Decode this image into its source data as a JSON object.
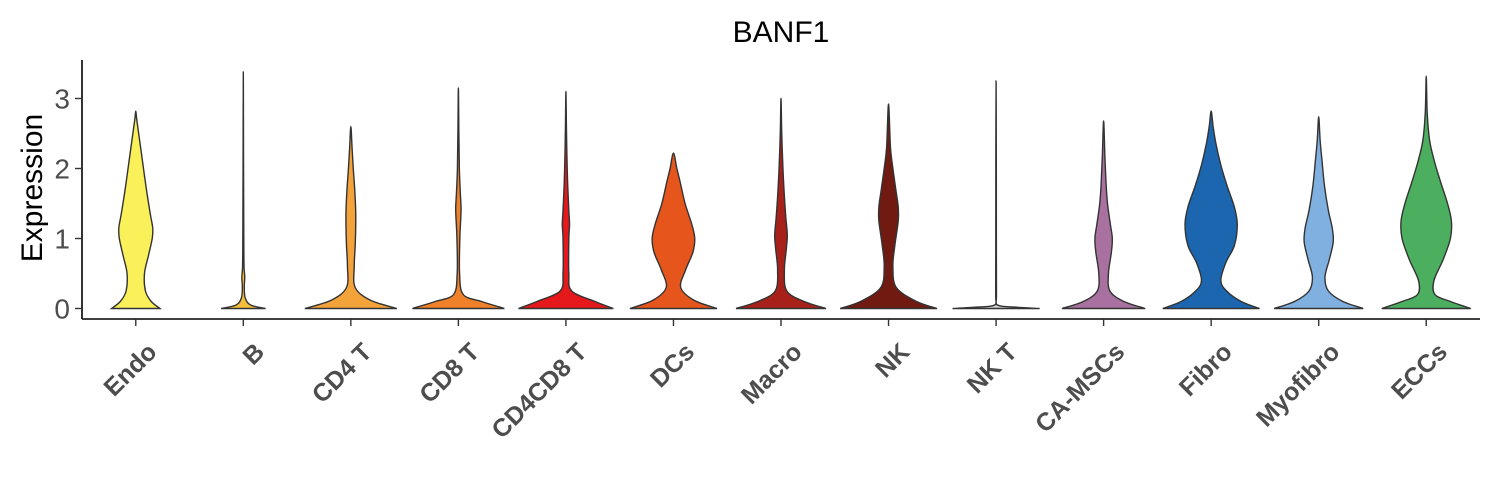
{
  "chart_data": {
    "type": "violin",
    "title": "BANF1",
    "ylabel": "Expression",
    "xlabel": "",
    "ylim": [
      -0.15,
      3.55
    ],
    "yticks": [
      0,
      1,
      2,
      3
    ],
    "categories": [
      "Endo",
      "B",
      "CD4 T",
      "CD8 T",
      "CD4CD8 T",
      "DCs",
      "Macro",
      "NK",
      "NK T",
      "CA-MSCs",
      "Fibro",
      "Myofibro",
      "ECCs"
    ],
    "colors": [
      "#F9F05A",
      "#F6BE3A",
      "#F4A23A",
      "#F0812B",
      "#E5191C",
      "#E6561C",
      "#A8201A",
      "#701A12",
      "#D5D5D5",
      "#A8719F",
      "#1C66B0",
      "#7FB0E0",
      "#4CAF60"
    ],
    "max_values": [
      2.82,
      3.38,
      2.6,
      3.15,
      3.1,
      2.22,
      3.0,
      2.92,
      3.25,
      2.68,
      2.82,
      2.74,
      3.32
    ],
    "shapes": [
      [
        [
          0,
          0.5
        ],
        [
          0.1,
          0.32
        ],
        [
          0.25,
          0.2
        ],
        [
          0.5,
          0.18
        ],
        [
          0.75,
          0.26
        ],
        [
          1.0,
          0.34
        ],
        [
          1.15,
          0.35
        ],
        [
          1.35,
          0.3
        ],
        [
          1.7,
          0.22
        ],
        [
          2.1,
          0.14
        ],
        [
          2.4,
          0.08
        ],
        [
          2.7,
          0.02
        ]
      ],
      [
        [
          0,
          0.46
        ],
        [
          0.05,
          0.15
        ],
        [
          0.15,
          0.04
        ],
        [
          0.3,
          0.02
        ],
        [
          0.45,
          0.03
        ],
        [
          0.6,
          0.015
        ],
        [
          1.0,
          0.01
        ],
        [
          2.0,
          0.005
        ]
      ],
      [
        [
          0,
          0.95
        ],
        [
          0.12,
          0.4
        ],
        [
          0.3,
          0.09
        ],
        [
          0.6,
          0.07
        ],
        [
          0.9,
          0.09
        ],
        [
          1.15,
          0.1
        ],
        [
          1.4,
          0.1
        ],
        [
          1.7,
          0.08
        ],
        [
          2.0,
          0.05
        ],
        [
          2.3,
          0.025
        ]
      ],
      [
        [
          0,
          0.95
        ],
        [
          0.1,
          0.48
        ],
        [
          0.2,
          0.1
        ],
        [
          0.5,
          0.025
        ],
        [
          1.0,
          0.03
        ],
        [
          1.3,
          0.05
        ],
        [
          1.45,
          0.055
        ],
        [
          1.65,
          0.04
        ],
        [
          2.0,
          0.02
        ],
        [
          2.5,
          0.01
        ]
      ],
      [
        [
          0,
          0.98
        ],
        [
          0.1,
          0.6
        ],
        [
          0.25,
          0.12
        ],
        [
          0.5,
          0.06
        ],
        [
          1.0,
          0.06
        ],
        [
          1.2,
          0.075
        ],
        [
          1.4,
          0.06
        ],
        [
          1.8,
          0.035
        ],
        [
          2.2,
          0.02
        ],
        [
          2.6,
          0.01
        ]
      ],
      [
        [
          0,
          0.9
        ],
        [
          0.12,
          0.42
        ],
        [
          0.3,
          0.15
        ],
        [
          0.55,
          0.25
        ],
        [
          0.8,
          0.4
        ],
        [
          1.0,
          0.44
        ],
        [
          1.2,
          0.38
        ],
        [
          1.5,
          0.24
        ],
        [
          1.8,
          0.14
        ],
        [
          2.0,
          0.07
        ]
      ],
      [
        [
          0,
          0.93
        ],
        [
          0.1,
          0.48
        ],
        [
          0.25,
          0.12
        ],
        [
          0.55,
          0.07
        ],
        [
          0.85,
          0.11
        ],
        [
          1.05,
          0.13
        ],
        [
          1.3,
          0.1
        ],
        [
          1.6,
          0.07
        ],
        [
          2.0,
          0.04
        ],
        [
          2.5,
          0.015
        ]
      ],
      [
        [
          0,
          1.0
        ],
        [
          0.1,
          0.58
        ],
        [
          0.3,
          0.16
        ],
        [
          0.6,
          0.09
        ],
        [
          0.9,
          0.13
        ],
        [
          1.25,
          0.2
        ],
        [
          1.45,
          0.2
        ],
        [
          1.7,
          0.15
        ],
        [
          2.0,
          0.09
        ],
        [
          2.3,
          0.04
        ]
      ],
      [
        [
          0,
          0.9
        ],
        [
          0.02,
          0.4
        ],
        [
          0.05,
          0.03
        ],
        [
          0.2,
          0.008
        ],
        [
          1.0,
          0.006
        ],
        [
          2.0,
          0.005
        ]
      ],
      [
        [
          0,
          0.86
        ],
        [
          0.1,
          0.42
        ],
        [
          0.25,
          0.13
        ],
        [
          0.5,
          0.1
        ],
        [
          0.8,
          0.16
        ],
        [
          1.0,
          0.18
        ],
        [
          1.2,
          0.14
        ],
        [
          1.5,
          0.08
        ],
        [
          1.8,
          0.05
        ],
        [
          2.2,
          0.025
        ]
      ],
      [
        [
          0,
          1.0
        ],
        [
          0.1,
          0.62
        ],
        [
          0.25,
          0.32
        ],
        [
          0.4,
          0.2
        ],
        [
          0.65,
          0.3
        ],
        [
          0.9,
          0.48
        ],
        [
          1.2,
          0.54
        ],
        [
          1.45,
          0.48
        ],
        [
          1.75,
          0.33
        ],
        [
          2.05,
          0.2
        ],
        [
          2.35,
          0.1
        ],
        [
          2.6,
          0.04
        ]
      ],
      [
        [
          0,
          0.92
        ],
        [
          0.1,
          0.5
        ],
        [
          0.25,
          0.2
        ],
        [
          0.45,
          0.13
        ],
        [
          0.7,
          0.22
        ],
        [
          0.95,
          0.3
        ],
        [
          1.15,
          0.28
        ],
        [
          1.4,
          0.2
        ],
        [
          1.75,
          0.12
        ],
        [
          2.1,
          0.07
        ],
        [
          2.4,
          0.03
        ]
      ],
      [
        [
          0,
          0.92
        ],
        [
          0.1,
          0.5
        ],
        [
          0.2,
          0.18
        ],
        [
          0.4,
          0.16
        ],
        [
          0.7,
          0.35
        ],
        [
          1.0,
          0.5
        ],
        [
          1.25,
          0.52
        ],
        [
          1.5,
          0.44
        ],
        [
          1.8,
          0.3
        ],
        [
          2.1,
          0.17
        ],
        [
          2.4,
          0.07
        ],
        [
          2.8,
          0.02
        ]
      ]
    ]
  }
}
